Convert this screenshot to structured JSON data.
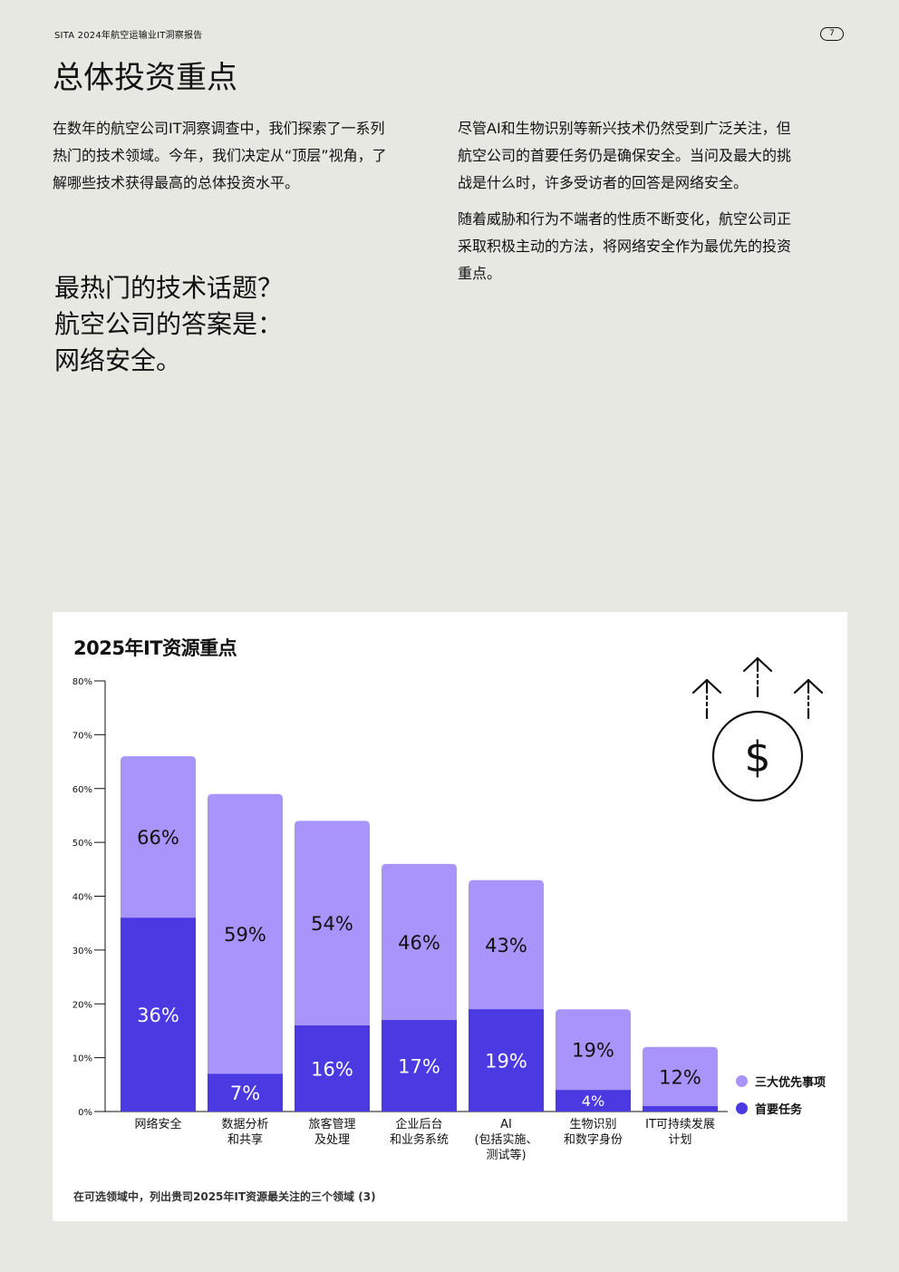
{
  "header": {
    "title": "SITA 2024年航空运输业IT洞察报告",
    "page_number": "7"
  },
  "page_title": "总体投资重点",
  "left_paragraph": "在数年的航空公司IT洞察调查中，我们探索了一系列热门的技术领域。今年，我们决定从“顶层”视角，了解哪些技术获得最高的总体投资水平。",
  "right_paragraphs": [
    "尽管AI和生物识别等新兴技术仍然受到广泛关注，但航空公司的首要任务仍是确保安全。当问及最大的挑战是什么时，许多受访者的回答是网络安全。",
    "随着威胁和行为不端者的性质不断变化，航空公司正采取积极主动的方法，将网络安全作为最优先的投资重点。"
  ],
  "callout": {
    "line1": "最热门的技术话题？",
    "line2": "航空公司的答案是：",
    "line3": "网络安全。"
  },
  "icons": {
    "money_icon": "dollar-circle-with-up-arrows-icon"
  },
  "colors": {
    "top3": "#a894fb",
    "primary": "#4b39e2",
    "background": "#e8e8e3"
  },
  "chart_data": {
    "type": "bar",
    "stacked": "overlay",
    "title": "2025年IT资源重点",
    "ylim": [
      0,
      80
    ],
    "yticks": [
      "0%",
      "10%",
      "20%",
      "30%",
      "40%",
      "50%",
      "60%",
      "70%",
      "80%"
    ],
    "categories": [
      [
        "网络安全"
      ],
      [
        "数据分析",
        "和共享"
      ],
      [
        "旅客管理",
        "及处理"
      ],
      [
        "企业后台",
        "和业务系统"
      ],
      [
        "AI",
        "(包括实施、",
        "测试等)"
      ],
      [
        "生物识别",
        "和数字身份"
      ],
      [
        "IT可持续发展",
        "计划"
      ]
    ],
    "series": [
      {
        "name": "三大优先事项",
        "values": [
          66,
          59,
          54,
          46,
          43,
          19,
          12
        ],
        "labels": [
          "66%",
          "59%",
          "54%",
          "46%",
          "43%",
          "19%",
          "12%"
        ]
      },
      {
        "name": "首要任务",
        "values": [
          36,
          7,
          16,
          17,
          19,
          4,
          1
        ],
        "labels": [
          "36%",
          "7%",
          "16%",
          "17%",
          "19%",
          "4%",
          ""
        ]
      }
    ],
    "grid": false,
    "legend": "right",
    "footnote": "在可选领域中，列出贵司2025年IT资源最关注的三个领域 (3)"
  }
}
